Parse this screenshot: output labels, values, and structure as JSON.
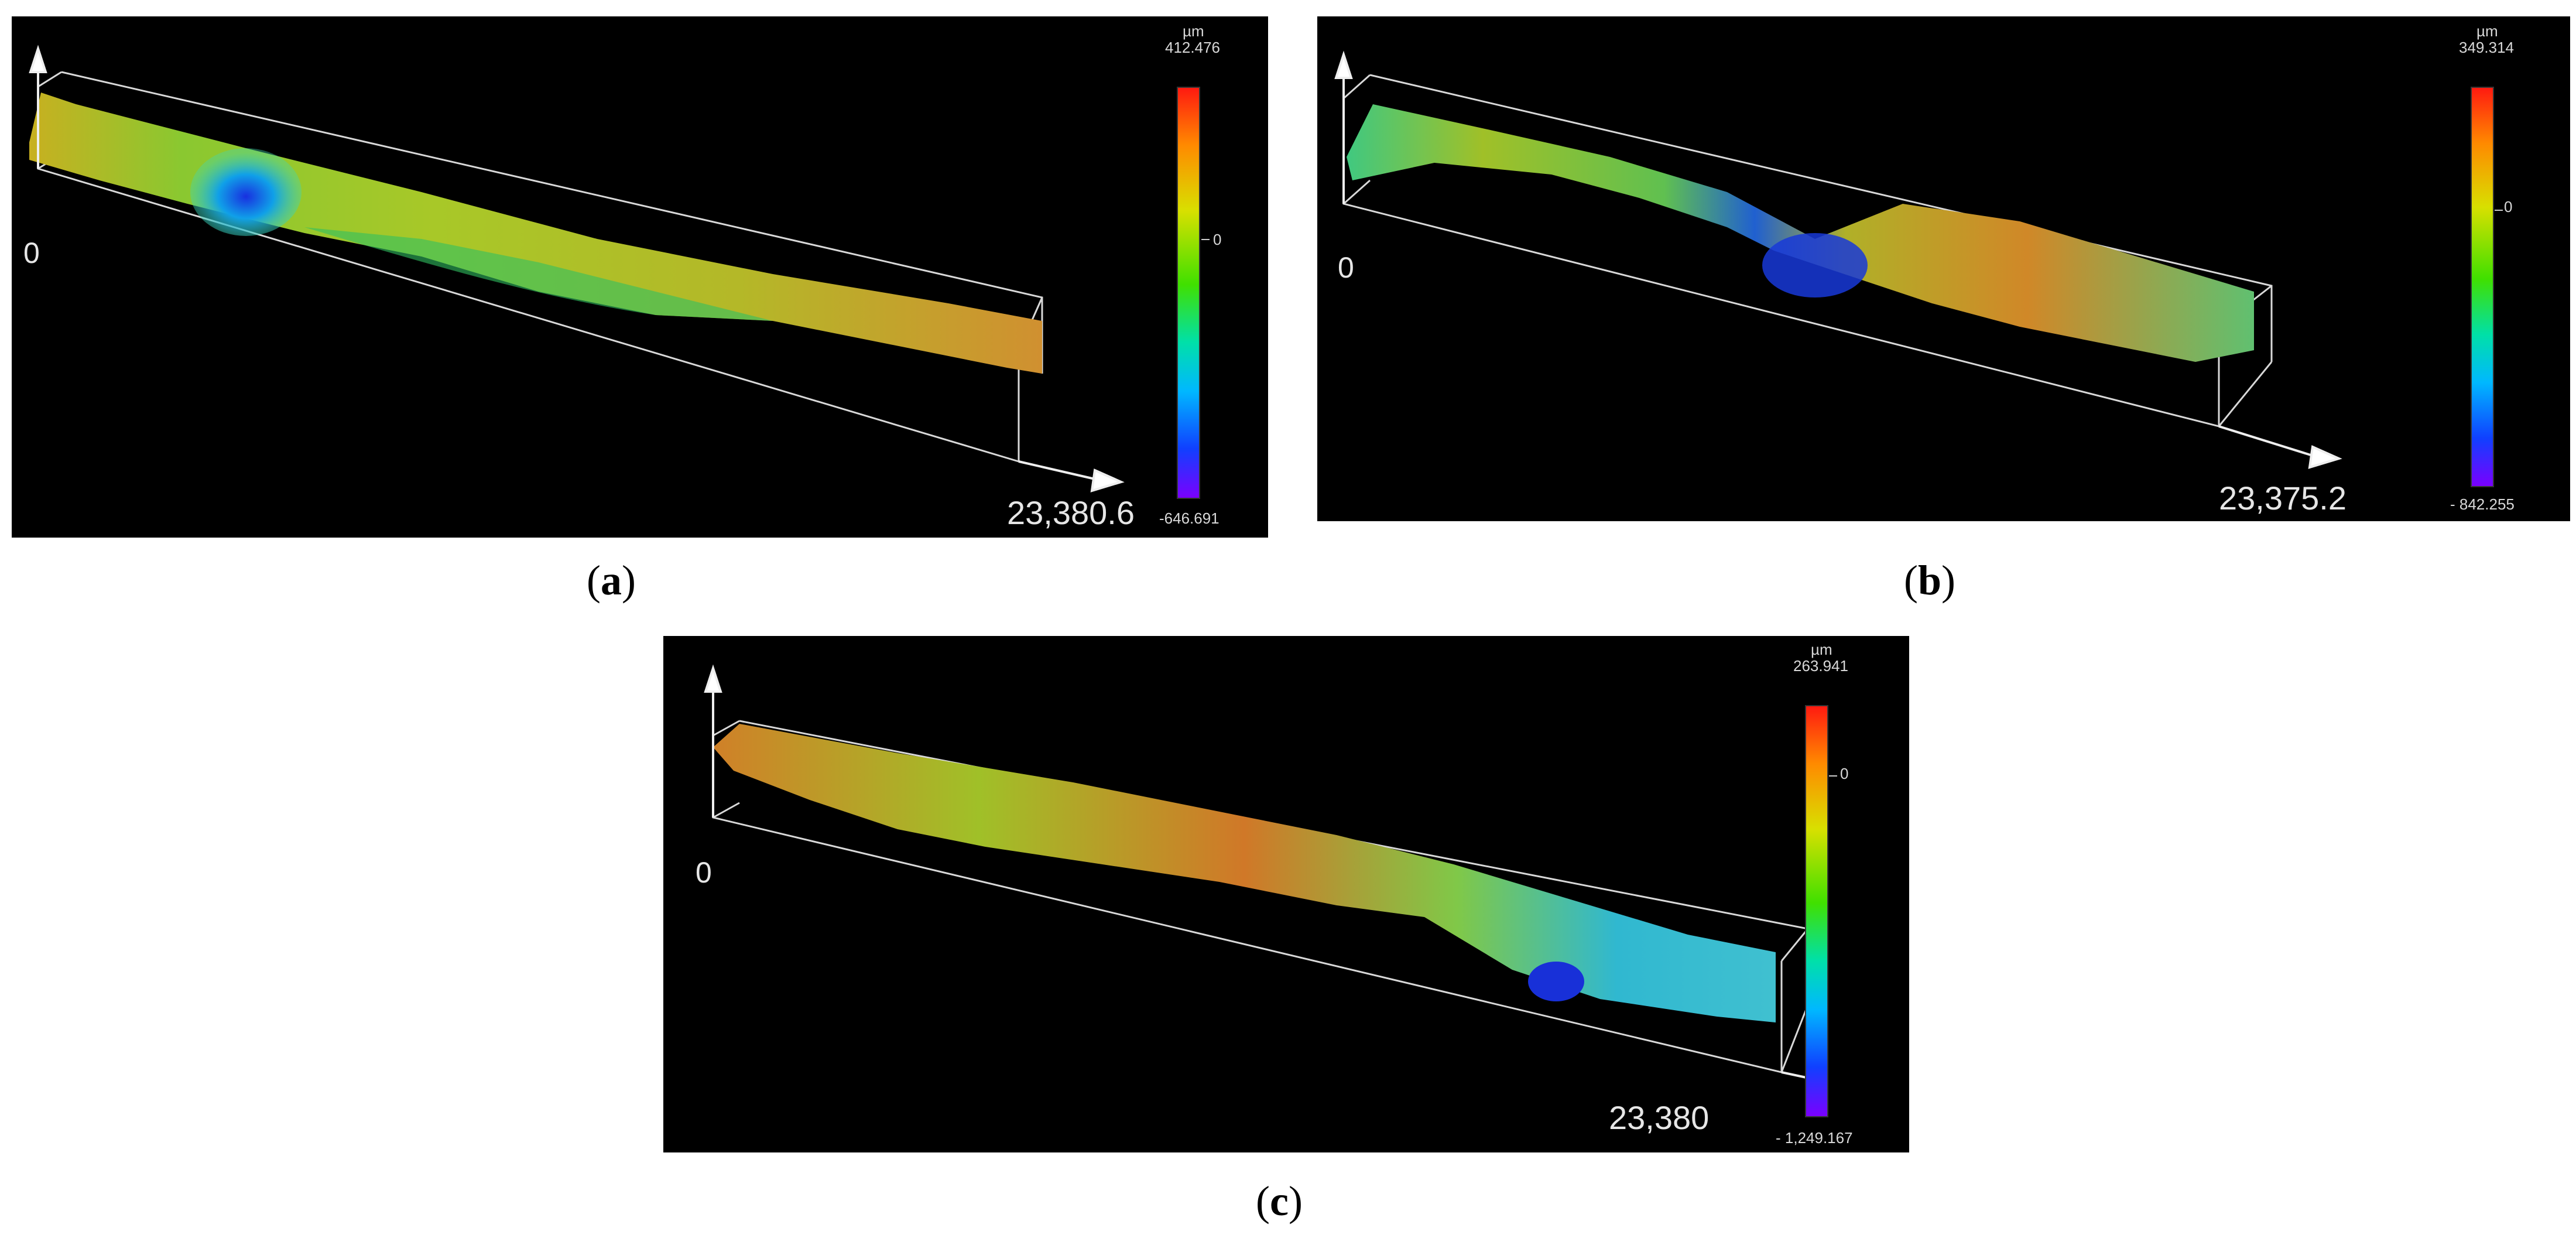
{
  "panels": [
    {
      "id": "a",
      "caption_letter": "a",
      "origin": "0",
      "xmax": "23,380.6",
      "unit": "µm",
      "max": "412.476",
      "zero": "0",
      "min": "-646.691"
    },
    {
      "id": "b",
      "caption_letter": "b",
      "origin": "0",
      "xmax": "23,375.2",
      "unit": "µm",
      "max": "349.314",
      "zero": "0",
      "min": "- 842.255"
    },
    {
      "id": "c",
      "caption_letter": "c",
      "origin": "0",
      "xmax": "23,380",
      "unit": "µm",
      "max": "263.941",
      "zero": "0",
      "min": "- 1,249.167"
    }
  ],
  "colors": {
    "background": "#000000",
    "scale_top": "#ff1a10",
    "scale_bottom": "#7a00ff",
    "axis": "#e0e0e0"
  }
}
